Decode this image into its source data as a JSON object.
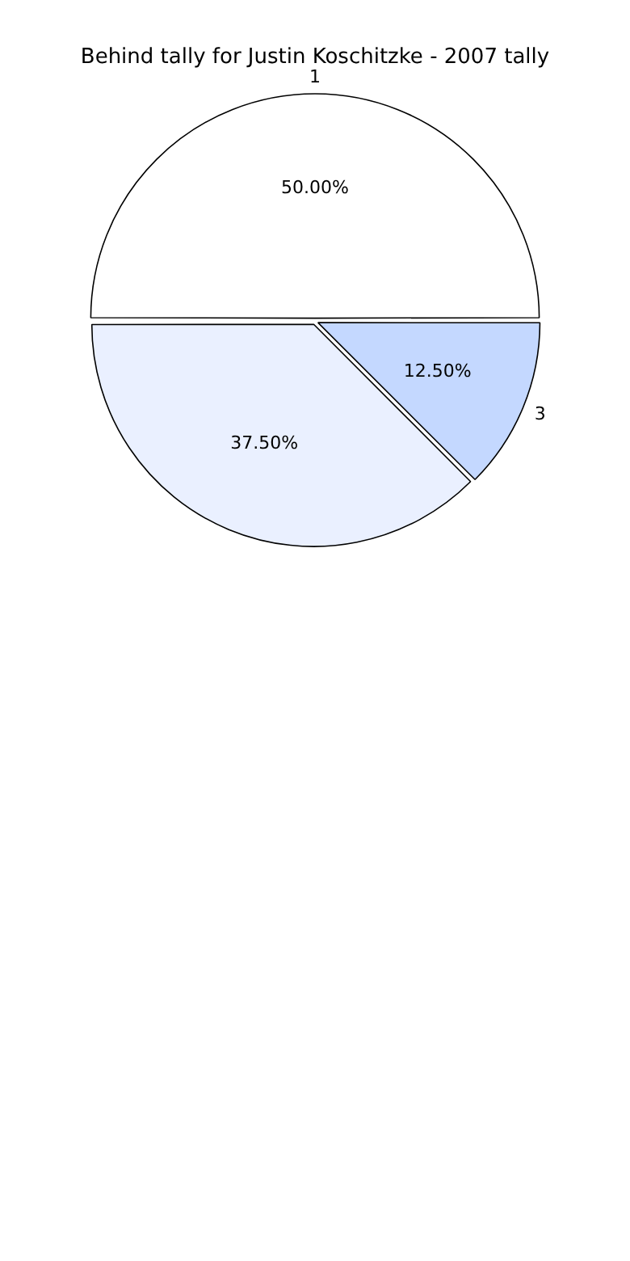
{
  "chart_data": {
    "type": "pie",
    "title": "Behind tally for Justin Koschitzke - 2007 tally",
    "categories": [
      "1",
      "3",
      null
    ],
    "values": [
      50,
      12.5,
      37.5
    ],
    "value_labels": [
      "50.00%",
      "12.50%",
      "37.50%"
    ],
    "colors": [
      "#ffffff",
      "#c4d8ff",
      "#eaf0ff"
    ],
    "legend": false
  }
}
